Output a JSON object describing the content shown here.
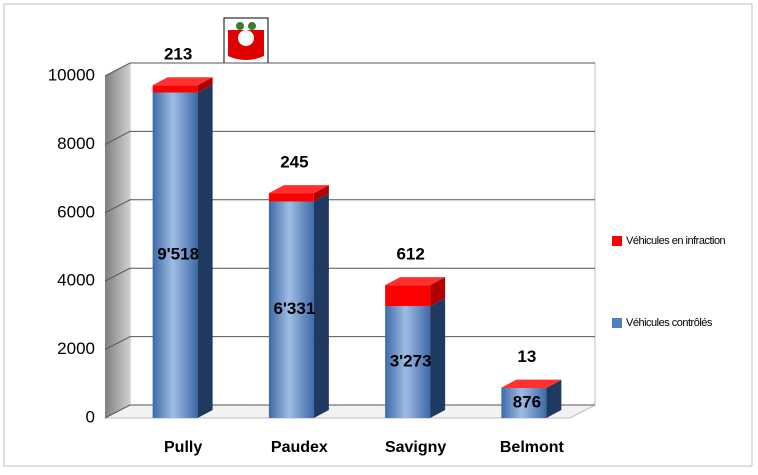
{
  "chart_data": {
    "type": "bar3d_stacked",
    "categories": [
      "Pully",
      "Paudex",
      "Savigny",
      "Belmont"
    ],
    "series": [
      {
        "name": "Véhicules contrôlés",
        "color": "#4f81bd",
        "values": [
          9518,
          6331,
          3273,
          876
        ],
        "value_labels": [
          "9'518",
          "6'331",
          "3'273",
          "876"
        ]
      },
      {
        "name": "Véhicules en infraction",
        "color": "#ff0000",
        "values": [
          213,
          245,
          612,
          13
        ]
      }
    ],
    "ylim": [
      0,
      10000
    ],
    "yticks": [
      0,
      2000,
      4000,
      6000,
      8000,
      10000
    ],
    "grid": true,
    "legend": "right"
  }
}
